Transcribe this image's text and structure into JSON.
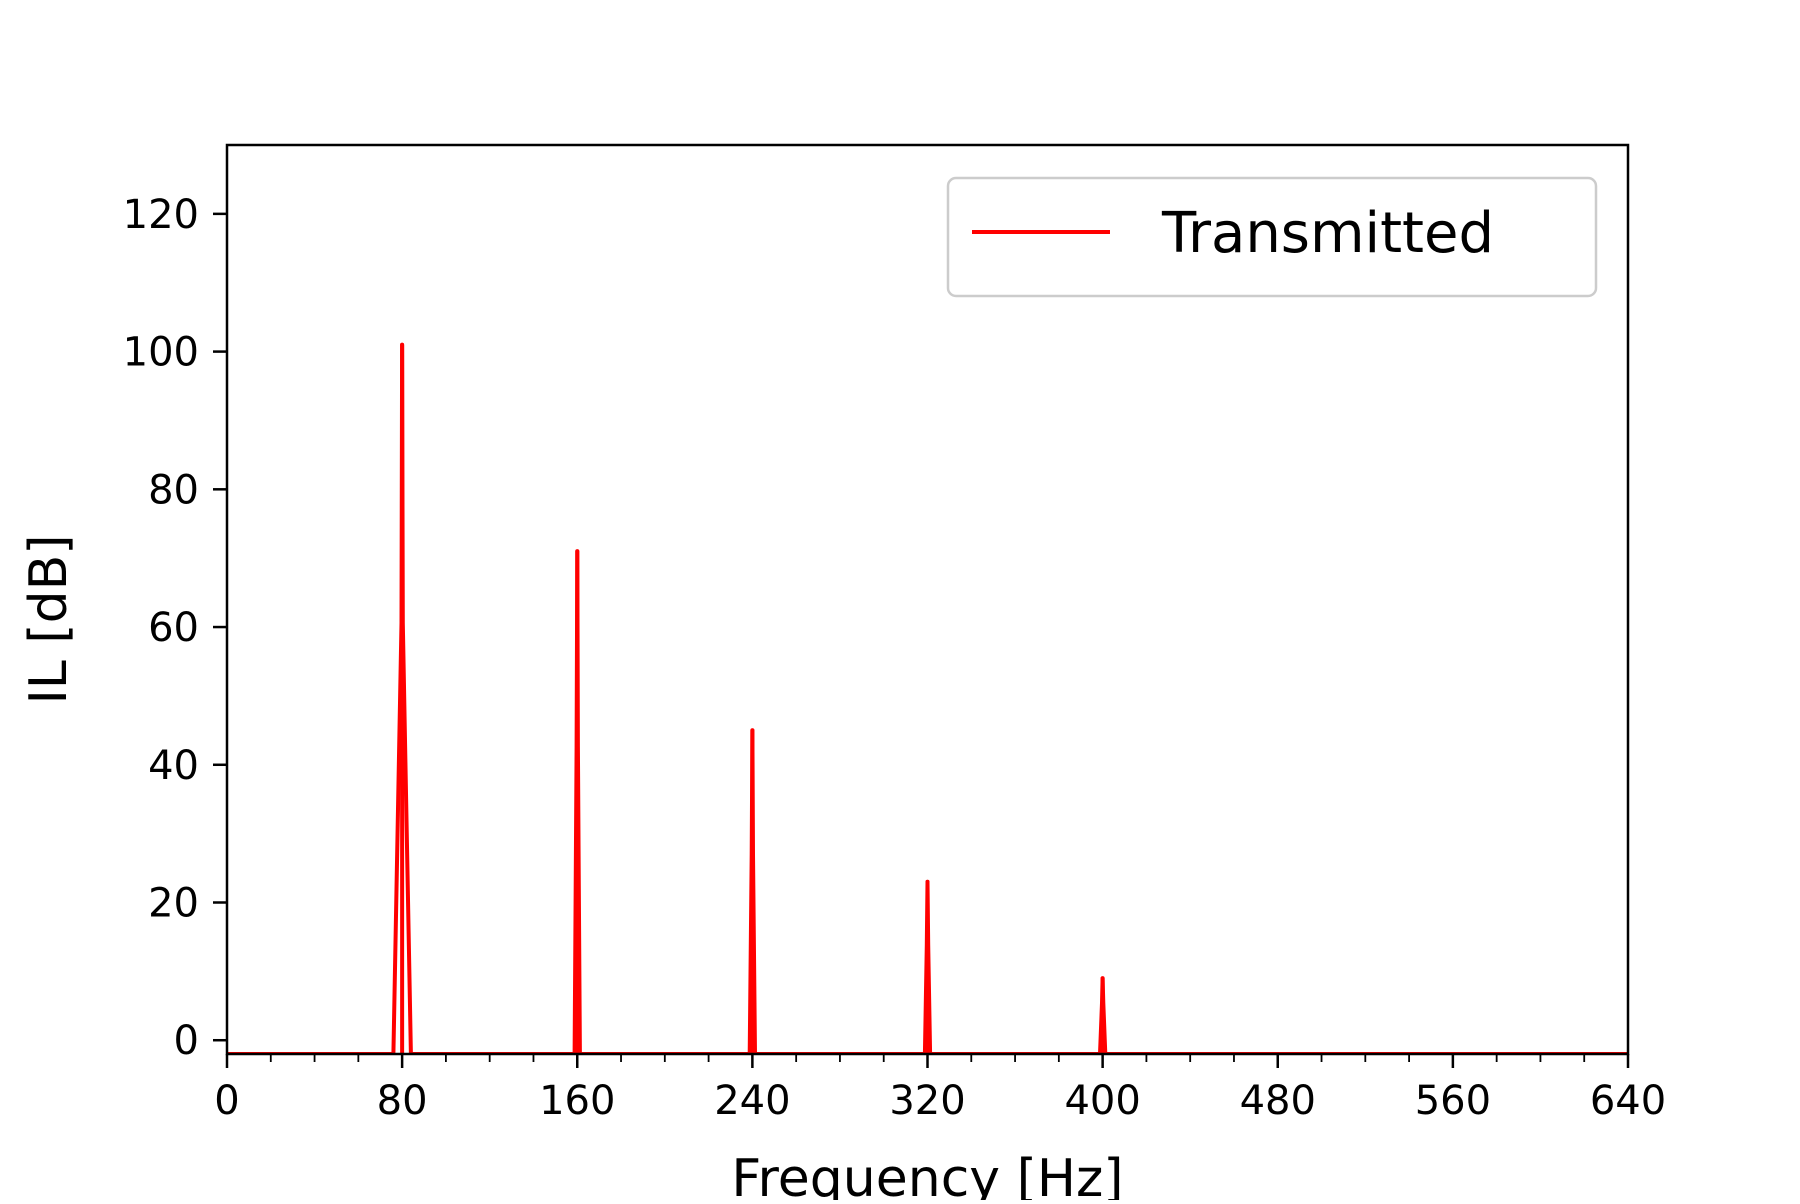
{
  "chart_data": {
    "type": "line",
    "xlabel": "Frequency [Hz]",
    "ylabel": "IL [dB]",
    "xlim": [
      0,
      640
    ],
    "ylim": [
      -2,
      130
    ],
    "x_ticks": [
      0,
      80,
      160,
      240,
      320,
      400,
      480,
      560,
      640
    ],
    "x_minor_step": 20,
    "y_ticks": [
      0,
      20,
      40,
      60,
      80,
      100,
      120
    ],
    "grid": false,
    "legend": {
      "placement": "top-right",
      "entries": [
        "Transmitted"
      ]
    },
    "series": [
      {
        "name": "Transmitted",
        "color": "#ff0000",
        "peaks": [
          {
            "x": 80,
            "y": 101
          },
          {
            "x": 160,
            "y": 71
          },
          {
            "x": 240,
            "y": 45
          },
          {
            "x": 320,
            "y": 23
          },
          {
            "x": 400,
            "y": 9
          }
        ]
      }
    ]
  }
}
